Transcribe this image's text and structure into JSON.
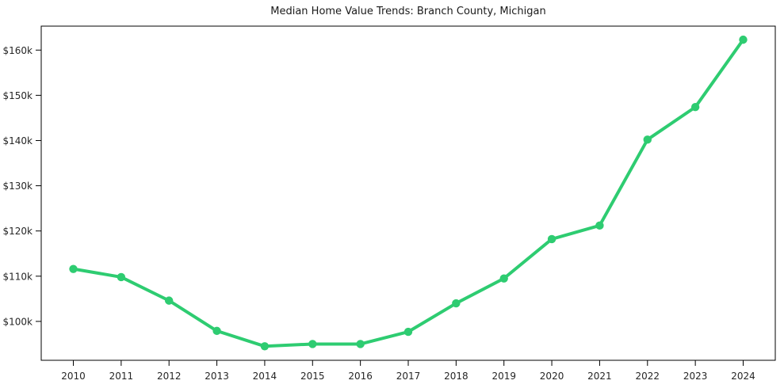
{
  "chart_data": {
    "type": "line",
    "title": "Median Home Value Trends: Branch County, Michigan",
    "xlabel": "",
    "ylabel": "",
    "categories": [
      "2010",
      "2011",
      "2012",
      "2013",
      "2014",
      "2015",
      "2016",
      "2017",
      "2018",
      "2019",
      "2020",
      "2021",
      "2022",
      "2023",
      "2024"
    ],
    "series": [
      {
        "name": "Median home value",
        "values": [
          111600,
          109800,
          104600,
          97900,
          94500,
          95000,
          95000,
          97700,
          104000,
          109500,
          118200,
          121200,
          140200,
          147400,
          162300
        ]
      }
    ],
    "ylim": [
      91400,
      165300
    ],
    "yticks": [
      {
        "value": 100000,
        "label": "$100k"
      },
      {
        "value": 110000,
        "label": "$110k"
      },
      {
        "value": 120000,
        "label": "$120k"
      },
      {
        "value": 130000,
        "label": "$130k"
      },
      {
        "value": 140000,
        "label": "$140k"
      },
      {
        "value": 150000,
        "label": "$150k"
      },
      {
        "value": 160000,
        "label": "$160k"
      }
    ],
    "grid": false,
    "legend_position": "none",
    "line_color": "#2ecc71",
    "marker": "circle",
    "axis_color": "#000000",
    "tick_label_color": "#262626",
    "title_color": "#1a1a1a",
    "background_color": "#ffffff"
  }
}
